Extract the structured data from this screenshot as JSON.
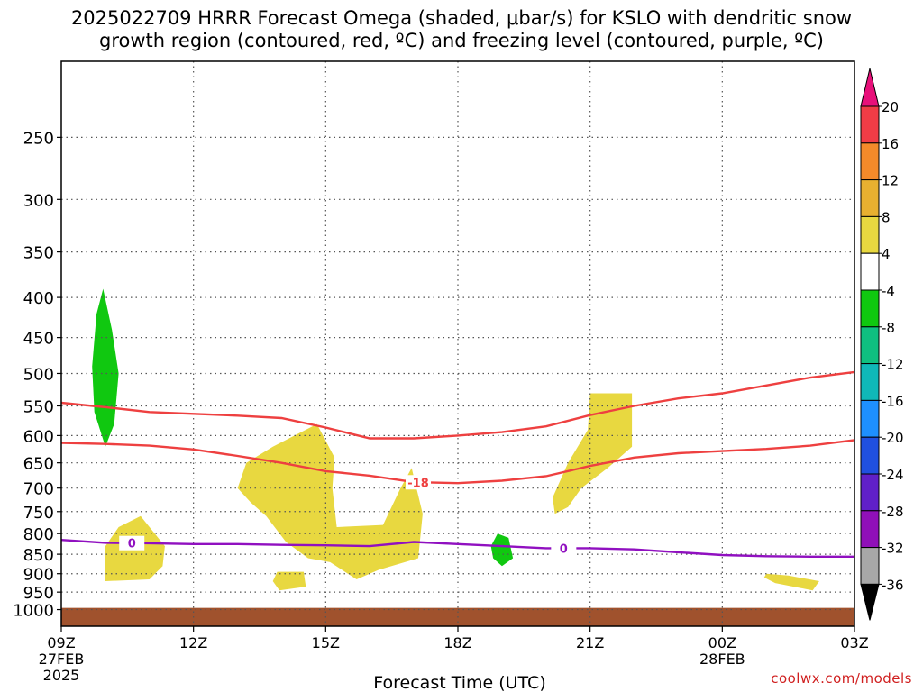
{
  "chart_data": {
    "type": "contour-heatmap",
    "title_line1": "2025022709 HRRR Forecast Omega (shaded, μbar/s) for KSLO with dendritic snow",
    "title_line2": "growth region (contoured, red, ºC) and freezing level (contoured, purple, ºC)",
    "xlabel": "Forecast Time (UTC)",
    "ylabel": "",
    "watermark": "coolwx.com/models",
    "x_axis": {
      "range_hours": [
        0,
        18
      ],
      "ticks": [
        {
          "hour": 0,
          "label": "09Z",
          "sub": "27FEB",
          "sub2": "2025"
        },
        {
          "hour": 3,
          "label": "12Z",
          "sub": "",
          "sub2": ""
        },
        {
          "hour": 6,
          "label": "15Z",
          "sub": "",
          "sub2": ""
        },
        {
          "hour": 9,
          "label": "18Z",
          "sub": "",
          "sub2": ""
        },
        {
          "hour": 12,
          "label": "21Z",
          "sub": "",
          "sub2": ""
        },
        {
          "hour": 15,
          "label": "00Z",
          "sub": "28FEB",
          "sub2": ""
        },
        {
          "hour": 18,
          "label": "03Z",
          "sub": "",
          "sub2": ""
        }
      ]
    },
    "y_axis": {
      "scale": "log-pressure",
      "unit": "hPa",
      "top": 200,
      "bottom": 1050,
      "ticks": [
        "250",
        "300",
        "350",
        "400",
        "450",
        "500",
        "550",
        "600",
        "650",
        "700",
        "750",
        "800",
        "850",
        "900",
        "950",
        "1000"
      ]
    },
    "ground_below_hpa": 995,
    "colorbar": {
      "labels": [
        "20",
        "16",
        "12",
        "8",
        "4",
        "-4",
        "-8",
        "-12",
        "-16",
        "-20",
        "-24",
        "-28",
        "-32",
        "-36"
      ],
      "colors": [
        "#f03c46",
        "#f48a2a",
        "#e8b030",
        "#e8d840",
        "#ffffff",
        "#10c810",
        "#10c080",
        "#10b8b8",
        "#1e90ff",
        "#2050e0",
        "#6020c8",
        "#9010b8",
        "#a8a8a8"
      ],
      "top_arrow_color": "#e8107a",
      "bottom_arrow_color": "#000000"
    },
    "shaded_regions": [
      {
        "category": "4",
        "color": "#e8d840",
        "points": [
          [
            1.0,
            830
          ],
          [
            1.3,
            785
          ],
          [
            1.8,
            760
          ],
          [
            2.35,
            830
          ],
          [
            2.3,
            880
          ],
          [
            2.0,
            915
          ],
          [
            1.0,
            920
          ]
        ]
      },
      {
        "category": "4",
        "color": "#e8d840",
        "points": [
          [
            4.0,
            700
          ],
          [
            4.2,
            650
          ],
          [
            4.8,
            620
          ],
          [
            5.8,
            580
          ],
          [
            6.2,
            640
          ],
          [
            6.15,
            700
          ],
          [
            6.25,
            785
          ],
          [
            7.3,
            780
          ],
          [
            7.7,
            700
          ],
          [
            7.95,
            660
          ],
          [
            8.2,
            755
          ],
          [
            8.1,
            860
          ],
          [
            7.2,
            890
          ],
          [
            6.7,
            915
          ],
          [
            6.1,
            870
          ],
          [
            5.6,
            860
          ],
          [
            5.1,
            820
          ],
          [
            4.65,
            760
          ],
          [
            4.3,
            730
          ]
        ]
      },
      {
        "category": "4",
        "color": "#e8d840",
        "points": [
          [
            4.9,
            895
          ],
          [
            5.5,
            895
          ],
          [
            5.55,
            935
          ],
          [
            4.95,
            945
          ],
          [
            4.8,
            920
          ]
        ]
      },
      {
        "category": "4",
        "color": "#e8d840",
        "points": [
          [
            11.15,
            720
          ],
          [
            11.5,
            650
          ],
          [
            11.95,
            590
          ],
          [
            12.0,
            530
          ],
          [
            12.95,
            530
          ],
          [
            12.95,
            620
          ],
          [
            12.4,
            660
          ],
          [
            11.8,
            700
          ],
          [
            11.5,
            740
          ],
          [
            11.2,
            755
          ]
        ]
      },
      {
        "category": "4",
        "color": "#e8d840",
        "points": [
          [
            16.0,
            900
          ],
          [
            16.5,
            905
          ],
          [
            17.2,
            920
          ],
          [
            17.05,
            945
          ],
          [
            16.2,
            925
          ],
          [
            15.95,
            910
          ]
        ]
      },
      {
        "category": "-4",
        "color": "#10c810",
        "points": [
          [
            0.95,
            390
          ],
          [
            1.15,
            440
          ],
          [
            1.3,
            500
          ],
          [
            1.2,
            580
          ],
          [
            1.0,
            620
          ],
          [
            0.75,
            560
          ],
          [
            0.7,
            490
          ],
          [
            0.8,
            420
          ]
        ]
      },
      {
        "category": "-4",
        "color": "#10c810",
        "points": [
          [
            9.9,
            800
          ],
          [
            10.15,
            810
          ],
          [
            10.25,
            860
          ],
          [
            10.0,
            880
          ],
          [
            9.8,
            860
          ],
          [
            9.75,
            830
          ]
        ]
      }
    ],
    "contours": [
      {
        "name": "-12",
        "color": "#ee4040",
        "label": "",
        "points": [
          [
            0,
            545
          ],
          [
            1,
            552
          ],
          [
            2,
            560
          ],
          [
            3,
            563
          ],
          [
            4,
            566
          ],
          [
            5,
            570
          ],
          [
            6,
            586
          ],
          [
            7,
            605
          ],
          [
            8,
            605
          ],
          [
            9,
            600
          ],
          [
            10,
            594
          ],
          [
            11,
            584
          ],
          [
            12,
            565
          ],
          [
            13,
            550
          ],
          [
            14,
            538
          ],
          [
            15,
            530
          ],
          [
            16,
            518
          ],
          [
            17,
            506
          ],
          [
            18,
            498
          ]
        ]
      },
      {
        "name": "-18",
        "color": "#ee4040",
        "label": "-18",
        "points": [
          [
            0,
            613
          ],
          [
            1,
            615
          ],
          [
            2,
            618
          ],
          [
            3,
            625
          ],
          [
            4,
            637
          ],
          [
            5,
            650
          ],
          [
            6,
            666
          ],
          [
            7,
            675
          ],
          [
            8,
            688
          ],
          [
            9,
            690
          ],
          [
            10,
            685
          ],
          [
            11,
            676
          ],
          [
            12,
            656
          ],
          [
            13,
            640
          ],
          [
            14,
            632
          ],
          [
            15,
            628
          ],
          [
            16,
            624
          ],
          [
            17,
            618
          ],
          [
            18,
            608
          ]
        ],
        "label_at": 8.1
      },
      {
        "name": "0",
        "color": "#9010c0",
        "label": "0",
        "points": [
          [
            0,
            815
          ],
          [
            1,
            822
          ],
          [
            2,
            823
          ],
          [
            3,
            825
          ],
          [
            4,
            825
          ],
          [
            5,
            827
          ],
          [
            6,
            828
          ],
          [
            7,
            830
          ],
          [
            8,
            820
          ],
          [
            9,
            825
          ],
          [
            10,
            830
          ],
          [
            11,
            835
          ],
          [
            12,
            835
          ],
          [
            13,
            838
          ],
          [
            14,
            845
          ],
          [
            15,
            852
          ],
          [
            16,
            855
          ],
          [
            17,
            856
          ],
          [
            18,
            856
          ]
        ],
        "label_at": [
          1.6,
          11.4
        ]
      }
    ]
  }
}
